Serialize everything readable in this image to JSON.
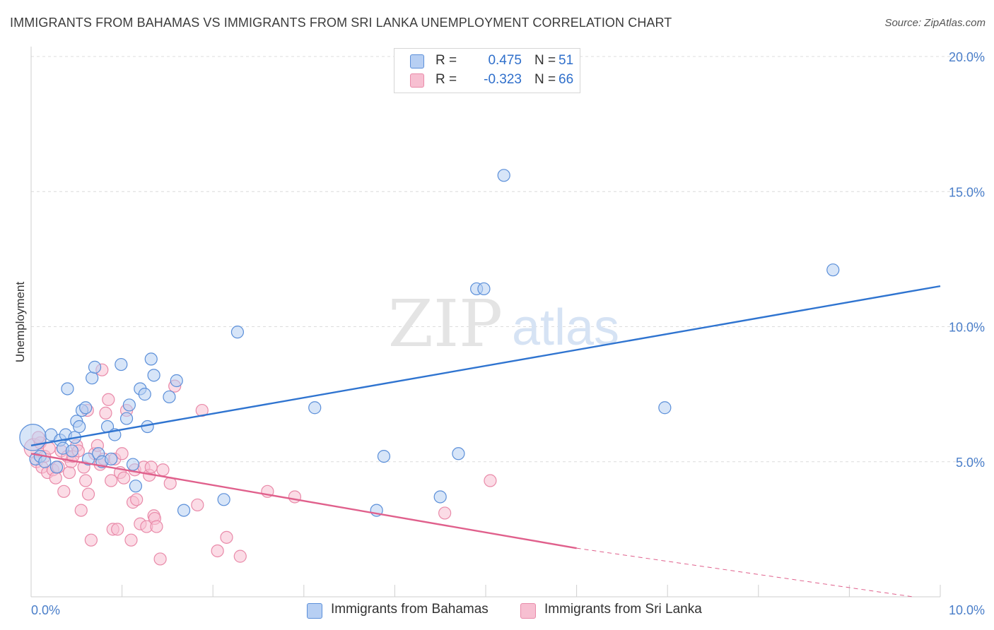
{
  "header": {
    "title": "IMMIGRANTS FROM BAHAMAS VS IMMIGRANTS FROM SRI LANKA UNEMPLOYMENT CORRELATION CHART",
    "source": "Source: ZipAtlas.com"
  },
  "watermark": {
    "zip": "ZIP",
    "atlas": "atlas"
  },
  "legend": {
    "r_label": "R =",
    "n_label": "N =",
    "series": [
      {
        "r": "0.475",
        "n": "51"
      },
      {
        "r": "-0.323",
        "n": "66"
      }
    ]
  },
  "bottom_legend": [
    "Immigrants from Bahamas",
    "Immigrants from Sri Lanka"
  ],
  "colors": {
    "blue_fill": "#b7cff3",
    "blue_stroke": "#5b8fd9",
    "blue_line": "#2f74d0",
    "pink_fill": "#f7bfd1",
    "pink_stroke": "#e98aa9",
    "pink_line": "#e0608c",
    "grid": "#dcdcdc",
    "tick_text": "#4a7ec9"
  },
  "chart_data": {
    "type": "scatter",
    "title": "IMMIGRANTS FROM BAHAMAS VS IMMIGRANTS FROM SRI LANKA UNEMPLOYMENT CORRELATION CHART",
    "xlabel": "",
    "ylabel": "Unemployment",
    "xlim": [
      0,
      10
    ],
    "ylim": [
      0,
      20
    ],
    "x_tick_labels": [
      "0.0%",
      "10.0%"
    ],
    "y_ticks": [
      5,
      10,
      15,
      20
    ],
    "y_tick_labels": [
      "5.0%",
      "10.0%",
      "15.0%",
      "20.0%"
    ],
    "grid": true,
    "series": [
      {
        "name": "Immigrants from Bahamas",
        "r": 0.475,
        "n": 51,
        "trend": {
          "x": [
            0,
            10
          ],
          "y": [
            5.6,
            11.5
          ]
        },
        "points": [
          [
            0.02,
            5.9,
            2.2
          ],
          [
            0.05,
            5.1,
            1
          ],
          [
            0.1,
            5.2,
            1
          ],
          [
            0.15,
            5.0,
            1
          ],
          [
            0.22,
            6.0,
            1
          ],
          [
            0.28,
            4.8,
            1
          ],
          [
            0.32,
            5.8,
            1
          ],
          [
            0.35,
            5.5,
            1
          ],
          [
            0.38,
            6.0,
            1
          ],
          [
            0.4,
            7.7,
            1
          ],
          [
            0.45,
            5.4,
            1
          ],
          [
            0.48,
            5.9,
            1
          ],
          [
            0.5,
            6.5,
            1
          ],
          [
            0.53,
            6.3,
            1
          ],
          [
            0.56,
            6.9,
            1
          ],
          [
            0.6,
            7.0,
            1
          ],
          [
            0.63,
            5.1,
            1
          ],
          [
            0.67,
            8.1,
            1
          ],
          [
            0.7,
            8.5,
            1
          ],
          [
            0.74,
            5.3,
            1
          ],
          [
            0.78,
            5.0,
            1
          ],
          [
            0.84,
            6.3,
            1
          ],
          [
            0.88,
            5.1,
            1
          ],
          [
            0.92,
            6.0,
            1
          ],
          [
            0.99,
            8.6,
            1
          ],
          [
            1.05,
            6.6,
            1
          ],
          [
            1.08,
            7.1,
            1
          ],
          [
            1.12,
            4.9,
            1
          ],
          [
            1.15,
            4.1,
            1
          ],
          [
            1.2,
            7.7,
            1
          ],
          [
            1.25,
            7.5,
            1
          ],
          [
            1.28,
            6.3,
            1
          ],
          [
            1.32,
            8.8,
            1
          ],
          [
            1.35,
            8.2,
            1
          ],
          [
            1.52,
            7.4,
            1
          ],
          [
            1.6,
            8.0,
            1
          ],
          [
            1.68,
            3.2,
            1
          ],
          [
            2.12,
            3.6,
            1
          ],
          [
            2.27,
            9.8,
            1
          ],
          [
            3.12,
            7.0,
            1
          ],
          [
            3.8,
            3.2,
            1
          ],
          [
            3.88,
            5.2,
            1
          ],
          [
            4.5,
            3.7,
            1
          ],
          [
            4.7,
            5.3,
            1
          ],
          [
            4.9,
            11.4,
            1
          ],
          [
            4.98,
            11.4,
            1
          ],
          [
            5.2,
            15.6,
            1
          ],
          [
            6.97,
            7.0,
            1
          ],
          [
            8.82,
            12.1,
            1
          ]
        ]
      },
      {
        "name": "Immigrants from Sri Lanka",
        "r": -0.323,
        "n": 66,
        "trend": {
          "x": [
            0,
            6.0
          ],
          "y": [
            5.3,
            1.8
          ]
        },
        "trend_dashed": {
          "x": [
            6.0,
            9.7
          ],
          "y": [
            1.8,
            -0.5
          ]
        },
        "points": [
          [
            0.03,
            5.5,
            1.6
          ],
          [
            0.06,
            5.0,
            1
          ],
          [
            0.1,
            5.7,
            1
          ],
          [
            0.12,
            4.8,
            1
          ],
          [
            0.15,
            5.2,
            1
          ],
          [
            0.18,
            4.6,
            1
          ],
          [
            0.2,
            5.5,
            1
          ],
          [
            0.24,
            4.7,
            1
          ],
          [
            0.27,
            4.4,
            1
          ],
          [
            0.3,
            4.8,
            1
          ],
          [
            0.33,
            5.4,
            1
          ],
          [
            0.36,
            3.9,
            1
          ],
          [
            0.4,
            5.2,
            1
          ],
          [
            0.42,
            4.6,
            1
          ],
          [
            0.44,
            5.0,
            1
          ],
          [
            0.46,
            5.2,
            1
          ],
          [
            0.5,
            5.6,
            1
          ],
          [
            0.52,
            5.4,
            1
          ],
          [
            0.55,
            3.2,
            1
          ],
          [
            0.58,
            4.8,
            1
          ],
          [
            0.6,
            4.3,
            1
          ],
          [
            0.63,
            3.8,
            1
          ],
          [
            0.66,
            2.1,
            1
          ],
          [
            0.7,
            5.3,
            1
          ],
          [
            0.73,
            5.6,
            1
          ],
          [
            0.76,
            4.9,
            1
          ],
          [
            0.8,
            5.1,
            1
          ],
          [
            0.82,
            6.8,
            1
          ],
          [
            0.85,
            7.3,
            1
          ],
          [
            0.88,
            4.3,
            1
          ],
          [
            0.9,
            2.5,
            1
          ],
          [
            0.92,
            5.1,
            1
          ],
          [
            0.95,
            2.5,
            1
          ],
          [
            0.98,
            4.6,
            1
          ],
          [
            1.0,
            5.3,
            1
          ],
          [
            1.02,
            4.4,
            1
          ],
          [
            1.05,
            6.9,
            1
          ],
          [
            1.1,
            2.1,
            1
          ],
          [
            1.12,
            3.5,
            1
          ],
          [
            1.14,
            4.7,
            1
          ],
          [
            1.16,
            3.6,
            1
          ],
          [
            1.2,
            2.7,
            1
          ],
          [
            1.24,
            4.8,
            1
          ],
          [
            1.27,
            2.6,
            1
          ],
          [
            1.3,
            4.5,
            1
          ],
          [
            1.32,
            4.8,
            1
          ],
          [
            1.35,
            3.0,
            1
          ],
          [
            1.36,
            2.9,
            1
          ],
          [
            1.38,
            2.6,
            1
          ],
          [
            1.42,
            1.4,
            1
          ],
          [
            1.45,
            4.7,
            1
          ],
          [
            1.53,
            4.2,
            1
          ],
          [
            1.58,
            7.8,
            1
          ],
          [
            1.83,
            3.4,
            1
          ],
          [
            1.88,
            6.9,
            1
          ],
          [
            2.05,
            1.7,
            1
          ],
          [
            2.15,
            2.2,
            1
          ],
          [
            2.3,
            1.5,
            1
          ],
          [
            2.6,
            3.9,
            1
          ],
          [
            2.9,
            3.7,
            1
          ],
          [
            4.55,
            3.1,
            1
          ],
          [
            5.05,
            4.3,
            1
          ],
          [
            0.78,
            8.4,
            1
          ],
          [
            0.62,
            6.9,
            1
          ],
          [
            0.08,
            5.9,
            1
          ]
        ]
      }
    ]
  }
}
